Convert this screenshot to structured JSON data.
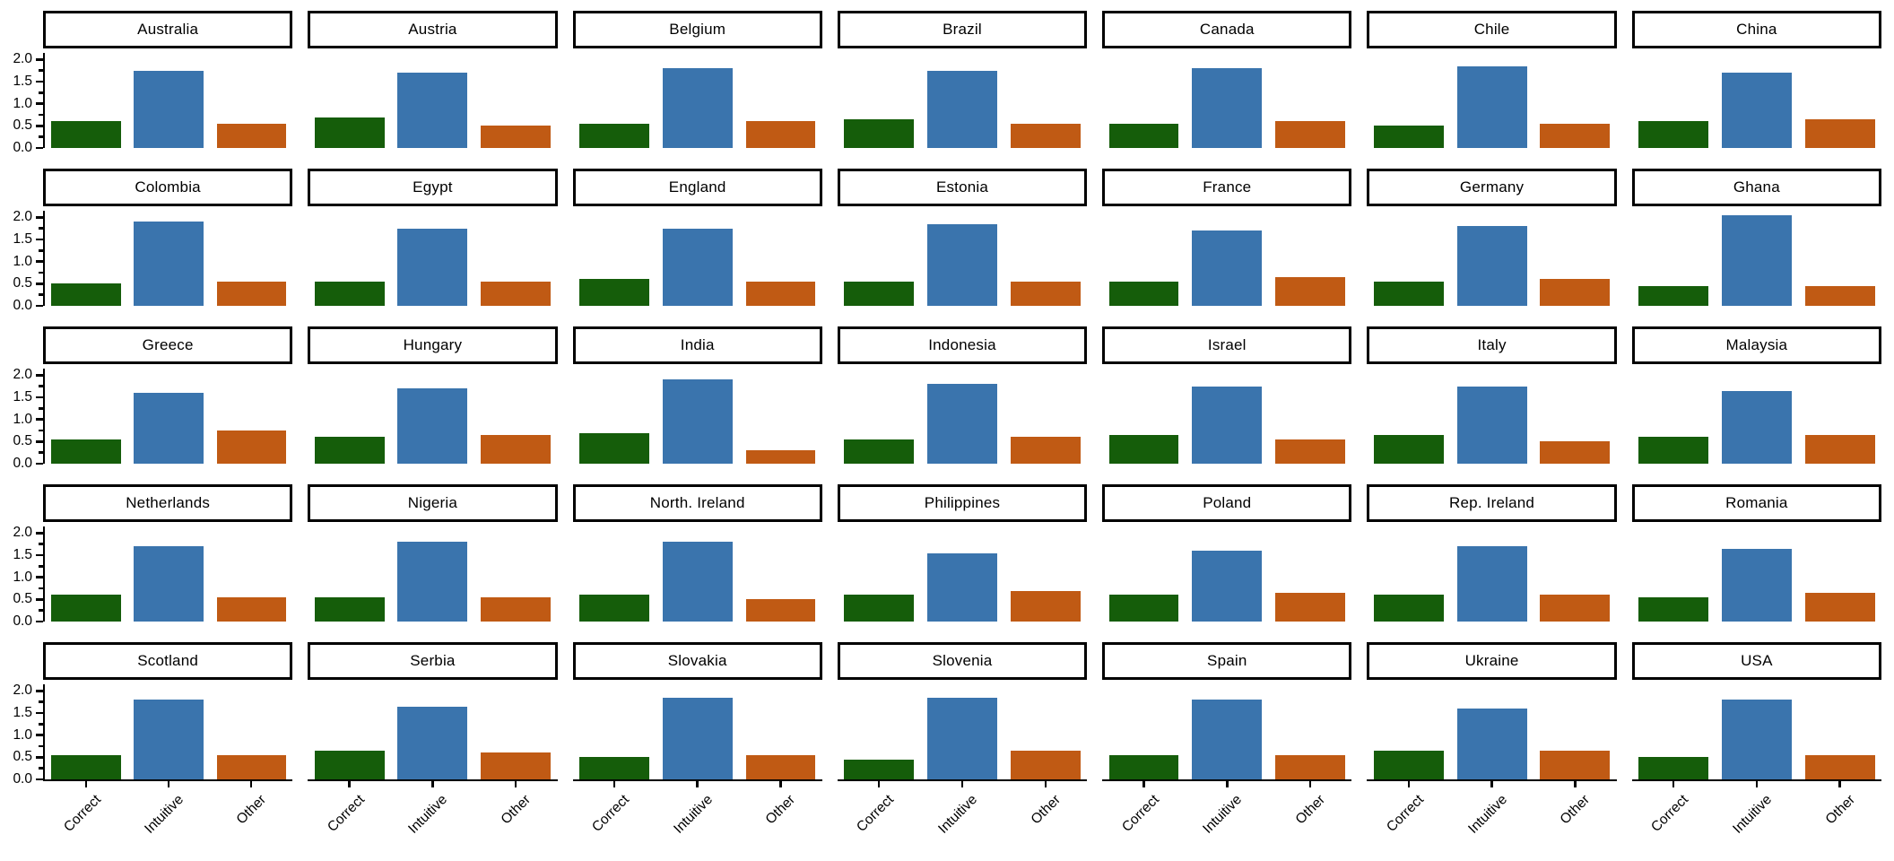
{
  "chart_data": {
    "type": "bar",
    "title": "",
    "xlabel": "",
    "ylabel": "",
    "categories": [
      "Correct",
      "Intuitive",
      "Other"
    ],
    "y_tick_labels": [
      "2.0",
      "1.5",
      "1.0",
      "0.5",
      "0.0"
    ],
    "y_tick_values": [
      2.0,
      1.5,
      1.0,
      0.5,
      0.0
    ],
    "y_minor_tick_values": [
      1.75,
      1.25,
      0.75,
      0.25
    ],
    "ylim": [
      0,
      2.15
    ],
    "grid": "off",
    "legend": "none",
    "facet_layout": {
      "rows": 5,
      "cols": 7
    },
    "bar_colors": [
      "#155d0a",
      "#3a74ad",
      "#c05a14"
    ],
    "facets": [
      {
        "country": "Australia",
        "values": [
          0.6,
          1.75,
          0.55
        ]
      },
      {
        "country": "Austria",
        "values": [
          0.7,
          1.7,
          0.5
        ]
      },
      {
        "country": "Belgium",
        "values": [
          0.55,
          1.8,
          0.6
        ]
      },
      {
        "country": "Brazil",
        "values": [
          0.65,
          1.75,
          0.55
        ]
      },
      {
        "country": "Canada",
        "values": [
          0.55,
          1.8,
          0.6
        ]
      },
      {
        "country": "Chile",
        "values": [
          0.5,
          1.85,
          0.55
        ]
      },
      {
        "country": "China",
        "values": [
          0.6,
          1.7,
          0.65
        ]
      },
      {
        "country": "Colombia",
        "values": [
          0.5,
          1.9,
          0.55
        ]
      },
      {
        "country": "Egypt",
        "values": [
          0.55,
          1.75,
          0.55
        ]
      },
      {
        "country": "England",
        "values": [
          0.6,
          1.75,
          0.55
        ]
      },
      {
        "country": "Estonia",
        "values": [
          0.55,
          1.85,
          0.55
        ]
      },
      {
        "country": "France",
        "values": [
          0.55,
          1.7,
          0.65
        ]
      },
      {
        "country": "Germany",
        "values": [
          0.55,
          1.8,
          0.6
        ]
      },
      {
        "country": "Ghana",
        "values": [
          0.45,
          2.05,
          0.45
        ]
      },
      {
        "country": "Greece",
        "values": [
          0.55,
          1.6,
          0.75
        ]
      },
      {
        "country": "Hungary",
        "values": [
          0.6,
          1.7,
          0.65
        ]
      },
      {
        "country": "India",
        "values": [
          0.7,
          1.9,
          0.3
        ]
      },
      {
        "country": "Indonesia",
        "values": [
          0.55,
          1.8,
          0.6
        ]
      },
      {
        "country": "Israel",
        "values": [
          0.65,
          1.75,
          0.55
        ]
      },
      {
        "country": "Italy",
        "values": [
          0.65,
          1.75,
          0.5
        ]
      },
      {
        "country": "Malaysia",
        "values": [
          0.6,
          1.65,
          0.65
        ]
      },
      {
        "country": "Netherlands",
        "values": [
          0.6,
          1.7,
          0.55
        ]
      },
      {
        "country": "Nigeria",
        "values": [
          0.55,
          1.8,
          0.55
        ]
      },
      {
        "country": "North. Ireland",
        "values": [
          0.6,
          1.8,
          0.5
        ]
      },
      {
        "country": "Philippines",
        "values": [
          0.6,
          1.55,
          0.7
        ]
      },
      {
        "country": "Poland",
        "values": [
          0.6,
          1.6,
          0.65
        ]
      },
      {
        "country": "Rep. Ireland",
        "values": [
          0.6,
          1.7,
          0.6
        ]
      },
      {
        "country": "Romania",
        "values": [
          0.55,
          1.65,
          0.65
        ]
      },
      {
        "country": "Scotland",
        "values": [
          0.55,
          1.8,
          0.55
        ]
      },
      {
        "country": "Serbia",
        "values": [
          0.65,
          1.65,
          0.6
        ]
      },
      {
        "country": "Slovakia",
        "values": [
          0.5,
          1.85,
          0.55
        ]
      },
      {
        "country": "Slovenia",
        "values": [
          0.45,
          1.85,
          0.65
        ]
      },
      {
        "country": "Spain",
        "values": [
          0.55,
          1.8,
          0.55
        ]
      },
      {
        "country": "Ukraine",
        "values": [
          0.65,
          1.6,
          0.65
        ]
      },
      {
        "country": "USA",
        "values": [
          0.5,
          1.8,
          0.55
        ]
      }
    ]
  },
  "colors": {
    "background": "#ffffff",
    "axis": "#000000",
    "strip_border": "#000000",
    "strip_fill": "#ffffff",
    "text": "#000000",
    "bar_correct_green": "#155d0a",
    "bar_intuitive_blue": "#3a74ad",
    "bar_other_orange": "#c05a14"
  }
}
